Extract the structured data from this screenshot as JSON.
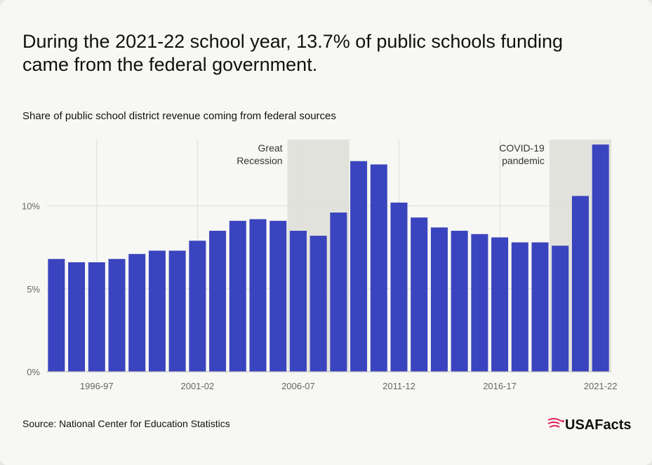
{
  "chart_data": {
    "type": "bar",
    "title": "During the 2021-22 school year, 13.7% of public schools funding came from the federal government.",
    "subtitle": "Share of public school district revenue coming from federal sources",
    "source": "Source: National Center for Education Statistics",
    "brand": "USAFacts",
    "categories": [
      null,
      null,
      "1996-97",
      null,
      null,
      null,
      null,
      "2001-02",
      null,
      null,
      null,
      null,
      "2006-07",
      null,
      null,
      null,
      null,
      "2011-12",
      null,
      null,
      null,
      null,
      "2016-17",
      null,
      null,
      null,
      null,
      "2021-22"
    ],
    "values": [
      6.8,
      6.6,
      6.6,
      6.8,
      7.1,
      7.3,
      7.3,
      7.9,
      8.5,
      9.1,
      9.2,
      9.1,
      8.5,
      8.2,
      9.6,
      12.7,
      12.5,
      10.2,
      9.3,
      8.7,
      8.5,
      8.3,
      8.1,
      7.8,
      7.8,
      7.6,
      10.6,
      13.7
    ],
    "color": "#3a44be",
    "ylim": [
      0,
      14
    ],
    "yticks": [
      {
        "value": 0,
        "label": "0%"
      },
      {
        "value": 5,
        "label": "5%"
      },
      {
        "value": 10,
        "label": "10%"
      }
    ],
    "grid": true,
    "annotations": [
      {
        "lines": [
          "Great",
          "Recession"
        ]
      },
      {
        "lines": [
          "COVID-19",
          "pandemic"
        ]
      }
    ]
  }
}
